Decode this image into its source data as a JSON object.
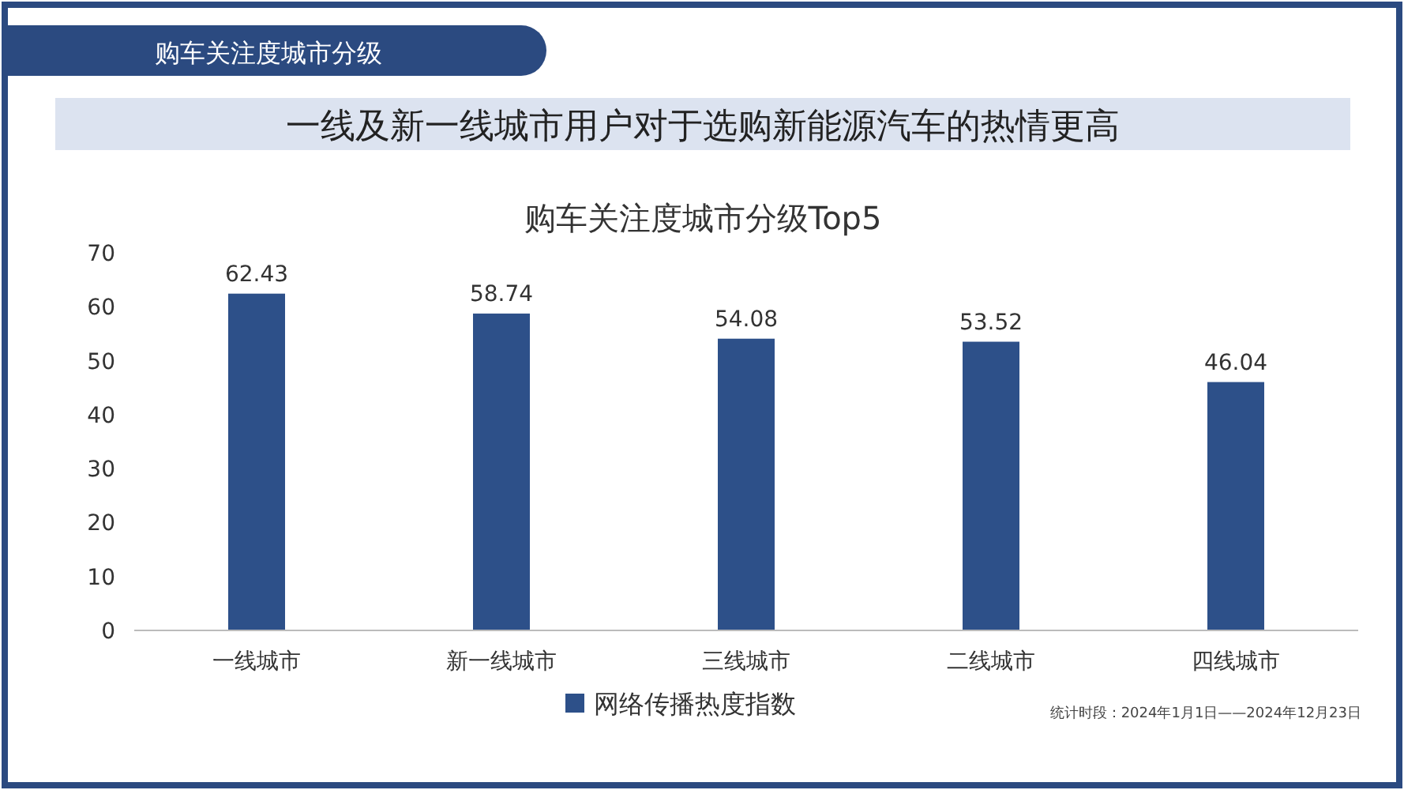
{
  "chart_data": {
    "type": "bar",
    "title": "购车关注度城市分级Top5",
    "subtitle": "一线及新一线城市用户对于选购新能源汽车的热情更高",
    "annotations": [
      "购车关注度城市分级",
      "统计时段：2024年1月1日——2024年12月23日"
    ],
    "categories": [
      "一线城市",
      "新一线城市",
      "三线城市",
      "二线城市",
      "四线城市"
    ],
    "series": [
      {
        "name": "网络传播热度指数",
        "color": "#2d5089",
        "values": [
          62.43,
          58.74,
          54.08,
          53.52,
          46.04
        ]
      }
    ],
    "ylim": [
      0,
      70
    ],
    "yticks": [
      0,
      10,
      20,
      30,
      40,
      50,
      60,
      70
    ],
    "data_labels": true,
    "legend": "bottom",
    "grid": false
  }
}
